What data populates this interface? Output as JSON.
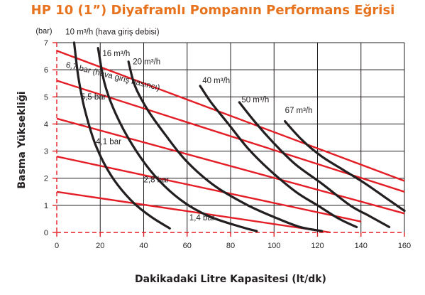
{
  "chart_data": {
    "type": "line",
    "title": "HP 10 (1”) Diyaframlı Pompanın Performans Eğrisi",
    "xlabel": "Dakikadaki Litre Kapasitesi (lt/dk)",
    "ylabel": "Basma Yüksekliği",
    "y_unit": "(bar)",
    "xlim": [
      0,
      160
    ],
    "ylim": [
      0,
      7
    ],
    "x_ticks": [
      "0",
      "20",
      "40",
      "60",
      "80",
      "100",
      "120",
      "140",
      "160"
    ],
    "y_ticks": [
      "0",
      "1",
      "2",
      "3",
      "4",
      "5",
      "6",
      "7"
    ],
    "grid": true,
    "colors": {
      "pressure": "#e41e26",
      "flow": "#231f20",
      "axis": "#e41e26",
      "grid": "#231f20"
    },
    "pressure_series": [
      {
        "name": "6,7 bar (hava giriş basıncı)",
        "points": [
          [
            0,
            6.7
          ],
          [
            160,
            1.9
          ]
        ]
      },
      {
        "name": "5,5 bar",
        "points": [
          [
            0,
            5.6
          ],
          [
            160,
            1.5
          ]
        ]
      },
      {
        "name": "4,1 bar",
        "points": [
          [
            0,
            4.2
          ],
          [
            160,
            0.7
          ]
        ]
      },
      {
        "name": "2,8 bar",
        "points": [
          [
            0,
            2.8
          ],
          [
            140,
            0.4
          ]
        ]
      },
      {
        "name": "1,4 bar",
        "points": [
          [
            0,
            1.5
          ],
          [
            126,
            0.0
          ]
        ]
      }
    ],
    "flow_series": [
      {
        "name": "10 m³/h (hava giriş debisi)",
        "points": [
          [
            8,
            7.0
          ],
          [
            10,
            5.7
          ],
          [
            13,
            4.5
          ],
          [
            18,
            3.2
          ],
          [
            25,
            2.1
          ],
          [
            34,
            1.2
          ],
          [
            43,
            0.6
          ],
          [
            52,
            0.15
          ]
        ]
      },
      {
        "name": "16 m³/h",
        "points": [
          [
            19,
            6.8
          ],
          [
            22,
            5.5
          ],
          [
            27,
            4.4
          ],
          [
            35,
            3.2
          ],
          [
            45,
            2.1
          ],
          [
            57,
            1.2
          ],
          [
            70,
            0.6
          ],
          [
            85,
            0.2
          ],
          [
            92,
            0.05
          ]
        ]
      },
      {
        "name": "20 m³/h",
        "points": [
          [
            33,
            6.3
          ],
          [
            36,
            5.4
          ],
          [
            42,
            4.5
          ],
          [
            50,
            3.6
          ],
          [
            60,
            2.6
          ],
          [
            73,
            1.7
          ],
          [
            88,
            1.0
          ],
          [
            102,
            0.5
          ],
          [
            112,
            0.2
          ],
          [
            122,
            0.05
          ]
        ]
      },
      {
        "name": "40 m³/h",
        "points": [
          [
            66,
            5.4
          ],
          [
            71,
            4.8
          ],
          [
            79,
            4.0
          ],
          [
            88,
            3.1
          ],
          [
            98,
            2.3
          ],
          [
            110,
            1.5
          ],
          [
            120,
            1.0
          ],
          [
            130,
            0.5
          ],
          [
            138,
            0.2
          ]
        ]
      },
      {
        "name": "50 m³/h",
        "points": [
          [
            84,
            4.8
          ],
          [
            92,
            4.0
          ],
          [
            101,
            3.2
          ],
          [
            110,
            2.5
          ],
          [
            122,
            1.8
          ],
          [
            135,
            1.0
          ],
          [
            144,
            0.6
          ],
          [
            153,
            0.2
          ]
        ]
      },
      {
        "name": "67 m³/h",
        "points": [
          [
            105,
            4.1
          ],
          [
            113,
            3.4
          ],
          [
            122,
            2.8
          ],
          [
            132,
            2.3
          ],
          [
            142,
            1.8
          ],
          [
            151,
            1.3
          ],
          [
            160,
            0.8
          ]
        ]
      }
    ],
    "annotations": [
      {
        "text": "10 m³/h (hava giriş debisi)",
        "x": 4,
        "y": 7.3,
        "rotate": 0
      },
      {
        "text": "16 m³/h",
        "x": 21,
        "y": 6.5,
        "rotate": 0
      },
      {
        "text": "20 m³/h",
        "x": 35,
        "y": 6.2,
        "rotate": 0
      },
      {
        "text": "6,7 bar (hava giriş basıncı)",
        "x": 4,
        "y": 6.1,
        "rotate": 14
      },
      {
        "text": "40 m³/h",
        "x": 67,
        "y": 5.5,
        "rotate": 0
      },
      {
        "text": "50 m³/h",
        "x": 85,
        "y": 4.8,
        "rotate": 0
      },
      {
        "text": "67 m³/h",
        "x": 105,
        "y": 4.4,
        "rotate": 0
      },
      {
        "text": "5,5 bar",
        "x": 11,
        "y": 4.9,
        "rotate": 0
      },
      {
        "text": "4,1 bar",
        "x": 18,
        "y": 3.25,
        "rotate": 0
      },
      {
        "text": "2,8 bar",
        "x": 40,
        "y": 1.85,
        "rotate": 0
      },
      {
        "text": "1,4 bar",
        "x": 61,
        "y": 0.45,
        "rotate": 0
      }
    ]
  }
}
